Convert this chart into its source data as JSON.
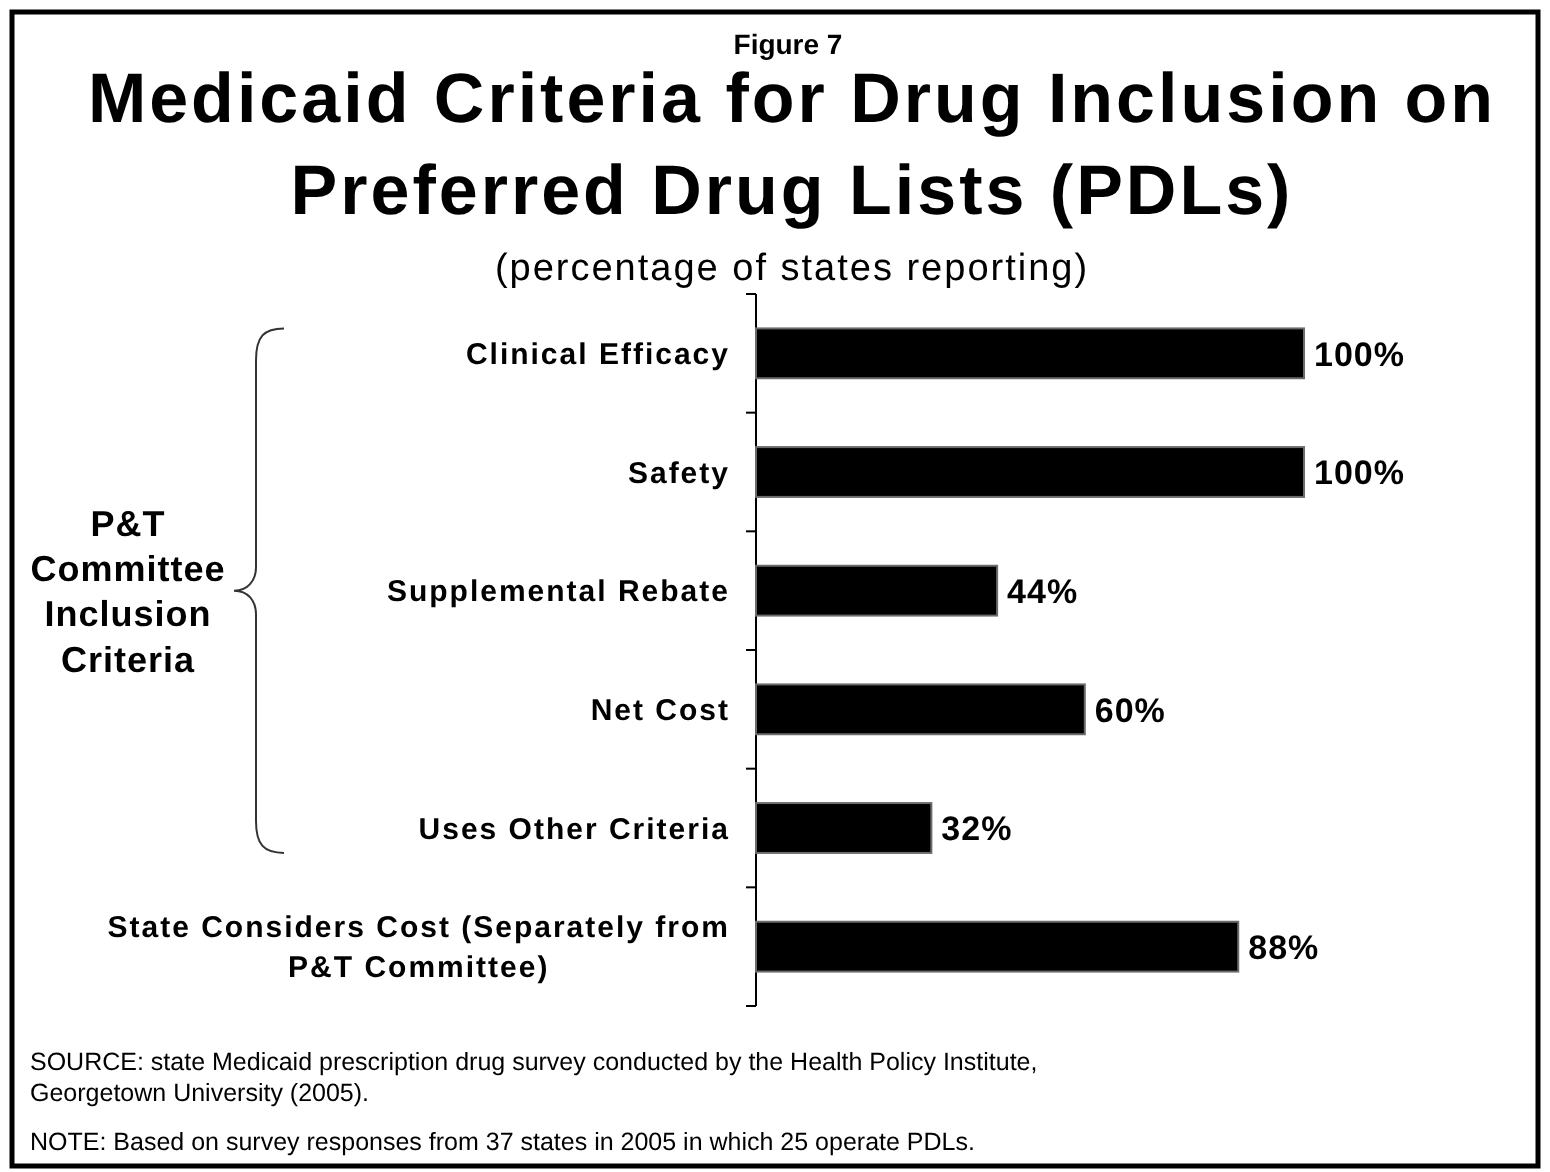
{
  "chart_data": {
    "type": "bar",
    "orientation": "horizontal",
    "title": "Medicaid Criteria for Drug Inclusion on Preferred Drug Lists (PDLs)",
    "subtitle": "(percentage of states reporting)",
    "categories": [
      "Clinical Efficacy",
      "Safety",
      "Supplemental Rebate",
      "Net Cost",
      "Uses Other Criteria",
      "State Considers Cost (Separately from P&T Committee)"
    ],
    "values": [
      100,
      100,
      44,
      60,
      32,
      88
    ],
    "color": "#000000",
    "value_labels": [
      "100%",
      "100%",
      "44%",
      "60%",
      "32%",
      "88%"
    ],
    "xlim": [
      0,
      100
    ],
    "tick_labels": "y",
    "annotations": [
      "Figure 7",
      "P&T Committee Inclusion Criteria",
      "SOURCE: state Medicaid prescription drug survey conducted by the Health Policy Institute, Georgetown University (2005).",
      "NOTE: Based on survey responses from 37 states in 2005 in which 25 operate PDLs."
    ]
  }
}
